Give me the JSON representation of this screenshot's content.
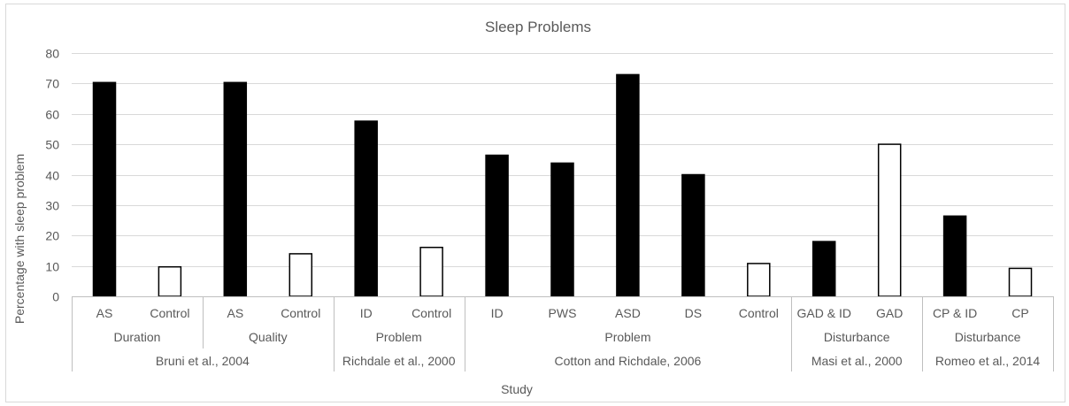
{
  "chart_data": {
    "type": "bar",
    "title": "Sleep Problems",
    "xlabel": "Study",
    "ylabel": "Percentage with sleep problem",
    "ylim": [
      0,
      80
    ],
    "yticks": [
      0,
      10,
      20,
      30,
      40,
      50,
      60,
      70,
      80
    ],
    "grid": true,
    "legend": "none",
    "colors": {
      "filled": "#000000",
      "control": "#ffffff",
      "outline": "#000000",
      "grid": "#d9d9d9",
      "text": "#595959",
      "divider": "#bfbfbf"
    },
    "categories": [
      "AS",
      "Control",
      "AS",
      "Control",
      "ID",
      "Control",
      "ID",
      "PWS",
      "ASD",
      "DS",
      "Control",
      "GAD & ID",
      "GAD",
      "CP & ID",
      "CP"
    ],
    "values": [
      70.3,
      9.7,
      70.3,
      14,
      57.6,
      16.1,
      46.4,
      43.8,
      72.9,
      40,
      10.8,
      18,
      50,
      26.4,
      9.2
    ],
    "bar_style": [
      "filled",
      "control",
      "filled",
      "control",
      "filled",
      "control",
      "filled",
      "filled",
      "filled",
      "filled",
      "control",
      "filled",
      "control",
      "filled",
      "control"
    ],
    "measure_groups": [
      {
        "label": "Duration",
        "start": 0,
        "count": 2
      },
      {
        "label": "Quality",
        "start": 2,
        "count": 2
      },
      {
        "label": "Problem",
        "start": 4,
        "count": 2
      },
      {
        "label": "Problem",
        "start": 6,
        "count": 5
      },
      {
        "label": "Disturbance",
        "start": 11,
        "count": 2
      },
      {
        "label": "Disturbance",
        "start": 13,
        "count": 2
      }
    ],
    "studies": [
      {
        "label": "Bruni et al., 2004",
        "start": 0,
        "count": 4
      },
      {
        "label": "Richdale et al.,  2000",
        "start": 4,
        "count": 2
      },
      {
        "label": "Cotton and Richdale, 2006",
        "start": 6,
        "count": 5
      },
      {
        "label": "Masi et al., 2000",
        "start": 11,
        "count": 2
      },
      {
        "label": "Romeo et al., 2014",
        "start": 13,
        "count": 2
      }
    ]
  }
}
